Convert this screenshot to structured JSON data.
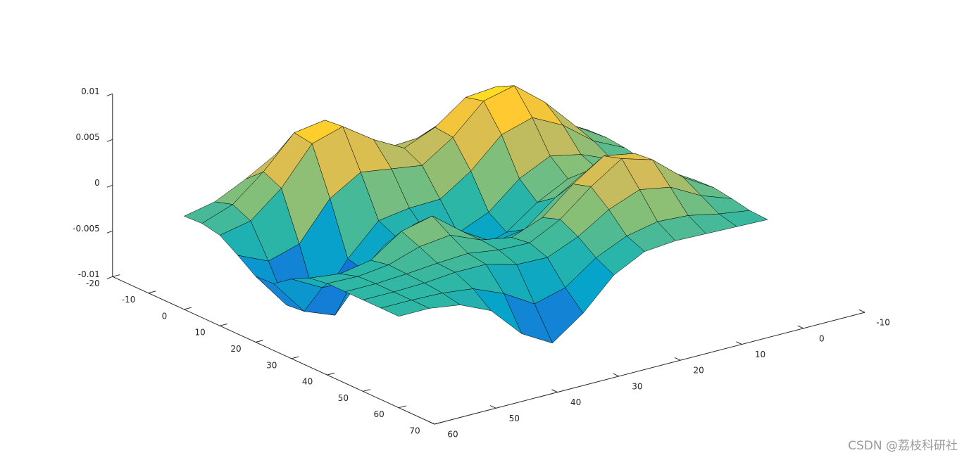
{
  "chart_data": {
    "type": "surface",
    "x": [
      0,
      5,
      10,
      15,
      20,
      25,
      30,
      35,
      40,
      45,
      50,
      55,
      60
    ],
    "y": [
      0,
      5,
      10,
      15,
      20,
      25,
      30,
      35,
      40,
      45,
      50,
      55,
      60
    ],
    "z": [
      [
        0.0002,
        0.0005,
        0.0009,
        0.001,
        0.0008,
        0.0004,
        0.0003,
        0.0005,
        0.0008,
        0.0009,
        0.0006,
        0.0002,
        0.0001
      ],
      [
        0.0007,
        0.0017,
        0.0028,
        0.0031,
        0.0024,
        0.0013,
        0.0009,
        0.0017,
        0.0028,
        0.0029,
        0.0018,
        0.0007,
        0.0002
      ],
      [
        0.0014,
        0.0035,
        0.0058,
        0.0066,
        0.005,
        0.0027,
        0.0019,
        0.0033,
        0.0055,
        0.0057,
        0.0036,
        0.0014,
        0.0003
      ],
      [
        0.002,
        0.005,
        0.0083,
        0.0093,
        0.0067,
        0.0034,
        0.0018,
        0.0035,
        0.0061,
        0.0067,
        0.0042,
        0.0016,
        0.0004
      ],
      [
        0.002,
        0.0048,
        0.008,
        0.0085,
        0.0057,
        0.0018,
        0.0001,
        0.0015,
        0.0039,
        0.0045,
        0.0029,
        0.0009,
        0.0001
      ],
      [
        0.0015,
        0.0035,
        0.0056,
        0.0054,
        0.0026,
        -0.001,
        -0.0023,
        -0.0011,
        0.0011,
        0.0018,
        0.0008,
        -0.0006,
        -0.0016
      ],
      [
        0.0017,
        0.0033,
        0.0042,
        0.0032,
        0.0004,
        -0.0024,
        -0.0033,
        -0.0016,
        -0.0002,
        0.0001,
        -0.0006,
        -0.003,
        -0.0049
      ],
      [
        0.0031,
        0.0055,
        0.006,
        0.0037,
        0.0003,
        -0.0016,
        -0.0009,
        0.0004,
        0.0004,
        0.0002,
        -0.0005,
        -0.0039,
        -0.0073
      ],
      [
        0.0046,
        0.0081,
        0.0083,
        0.0042,
        -0.0002,
        -0.0011,
        0.0012,
        0.003,
        0.0018,
        0.0007,
        0.0004,
        -0.0019,
        -0.0054
      ],
      [
        0.0044,
        0.0076,
        0.0073,
        0.0022,
        -0.0035,
        -0.004,
        -0.0003,
        0.0022,
        0.0014,
        0.0005,
        0.0004,
        -0.0005,
        -0.002
      ],
      [
        0.0025,
        0.0042,
        0.0033,
        -0.0019,
        -0.0077,
        -0.0079,
        -0.0033,
        -0.0001,
        0.0003,
        0.0002,
        0.0001,
        -0.0001,
        -0.0005
      ],
      [
        0.0009,
        0.0015,
        0.0006,
        -0.0029,
        -0.0068,
        -0.0066,
        -0.0031,
        -0.0007,
        -0.0001,
        0,
        0,
        0,
        0
      ],
      [
        0.0002,
        0.0003,
        -0.0001,
        -0.0014,
        -0.0028,
        -0.0027,
        -0.0013,
        -0.0003,
        0,
        0,
        0,
        0,
        0
      ]
    ],
    "xlim": [
      -10,
      60
    ],
    "xticks": [
      -10,
      0,
      10,
      20,
      30,
      40,
      50,
      60
    ],
    "ylim": [
      -20,
      70
    ],
    "yticks": [
      -20,
      -10,
      0,
      10,
      20,
      30,
      40,
      50,
      60,
      70
    ],
    "zlim": [
      -0.01,
      0.01
    ],
    "zticks": [
      -0.01,
      -0.005,
      0,
      0.005,
      0.01
    ],
    "colormap": [
      "#352a87",
      "#0f5cdd",
      "#1481d6",
      "#06a4ca",
      "#2eb7a4",
      "#87bf77",
      "#d1bb59",
      "#fec832",
      "#f9fb0e"
    ],
    "edge_color": "#000000",
    "watermark": "CSDN @荔枝科研社"
  }
}
